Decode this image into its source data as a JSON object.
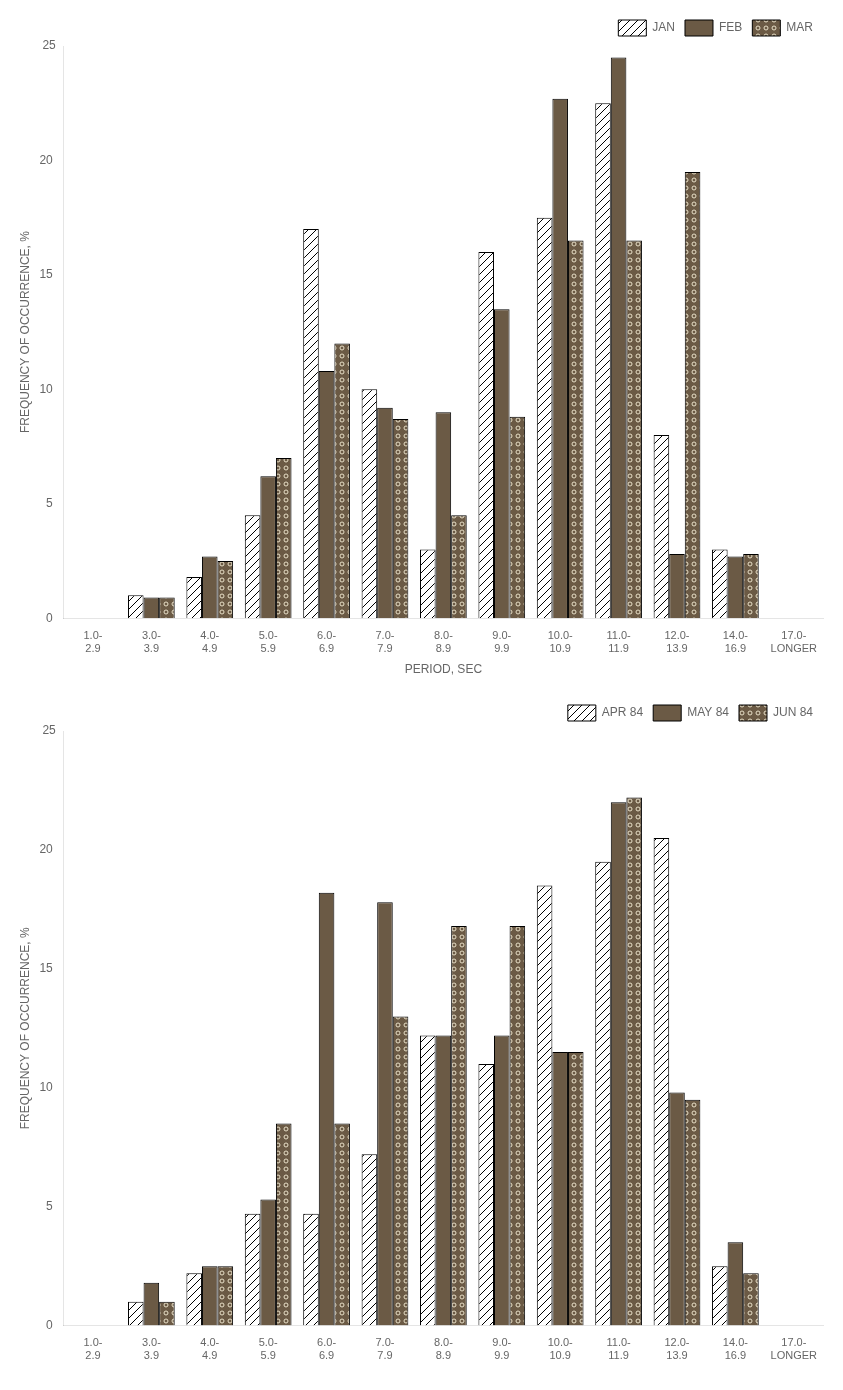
{
  "chart_data": [
    {
      "type": "bar",
      "xlabel": "PERIOD, SEC",
      "ylabel": "FREQUENCY OF OCCURRENCE, %",
      "categories": [
        "1.0-\n2.9",
        "3.0-\n3.9",
        "4.0-\n4.9",
        "5.0-\n5.9",
        "6.0-\n6.9",
        "7.0-\n7.9",
        "8.0-\n8.9",
        "9.0-\n9.9",
        "10.0-\n10.9",
        "11.0-\n11.9",
        "12.0-\n13.9",
        "14.0-\n16.9",
        "17.0-\nLONGER"
      ],
      "series": [
        {
          "name": "JAN",
          "color": "#ffffff",
          "values": [
            0.0,
            1.0,
            1.8,
            4.5,
            17.0,
            10.0,
            3.0,
            16.0,
            17.5,
            22.5,
            8.0,
            3.0,
            0.0
          ]
        },
        {
          "name": "FEB",
          "color": "#6b5a45",
          "values": [
            0.0,
            0.9,
            2.7,
            6.2,
            10.8,
            9.2,
            9.0,
            13.5,
            22.7,
            24.5,
            2.8,
            2.7,
            0.0
          ]
        },
        {
          "name": "MAR",
          "color": "#6b5a45",
          "values": [
            0.0,
            0.9,
            2.5,
            7.0,
            12.0,
            8.7,
            4.5,
            8.8,
            16.5,
            16.5,
            19.5,
            2.8,
            0.0
          ]
        }
      ],
      "ylim": [
        0,
        25
      ],
      "yticks": [
        0,
        5,
        10,
        15,
        20
      ],
      "annotations": [
        "25"
      ],
      "grid": false,
      "legend": "upper right"
    },
    {
      "type": "bar",
      "ylabel": "FREQUENCY OF OCCURRENCE, %",
      "categories": [
        "1.0-\n2.9",
        "3.0-\n3.9",
        "4.0-\n4.9",
        "5.0-\n5.9",
        "6.0-\n6.9",
        "7.0-\n7.9",
        "8.0-\n8.9",
        "9.0-\n9.9",
        "10.0-\n10.9",
        "11.0-\n11.9",
        "12.0-\n13.9",
        "14.0-\n16.9",
        "17.0-\nLONGER"
      ],
      "series": [
        {
          "name": "APR 84",
          "color": "#ffffff",
          "values": [
            0.0,
            1.0,
            2.2,
            4.7,
            4.7,
            7.2,
            12.2,
            11.0,
            18.5,
            19.5,
            20.5,
            2.5,
            0.0
          ]
        },
        {
          "name": "MAY 84",
          "color": "#6b5a45",
          "values": [
            0.0,
            1.8,
            2.5,
            5.3,
            18.2,
            17.8,
            12.2,
            12.2,
            11.5,
            22.0,
            9.8,
            3.5,
            0.0
          ]
        },
        {
          "name": "JUN 84",
          "color": "#6b5a45",
          "values": [
            0.0,
            1.0,
            2.5,
            8.5,
            8.5,
            13.0,
            16.8,
            16.8,
            11.5,
            22.2,
            9.5,
            2.2,
            0.0
          ]
        }
      ],
      "ylim": [
        0,
        25
      ],
      "yticks": [
        0,
        5,
        10,
        15,
        20
      ],
      "annotations": [
        "25"
      ],
      "grid": false,
      "legend": "upper right"
    }
  ]
}
